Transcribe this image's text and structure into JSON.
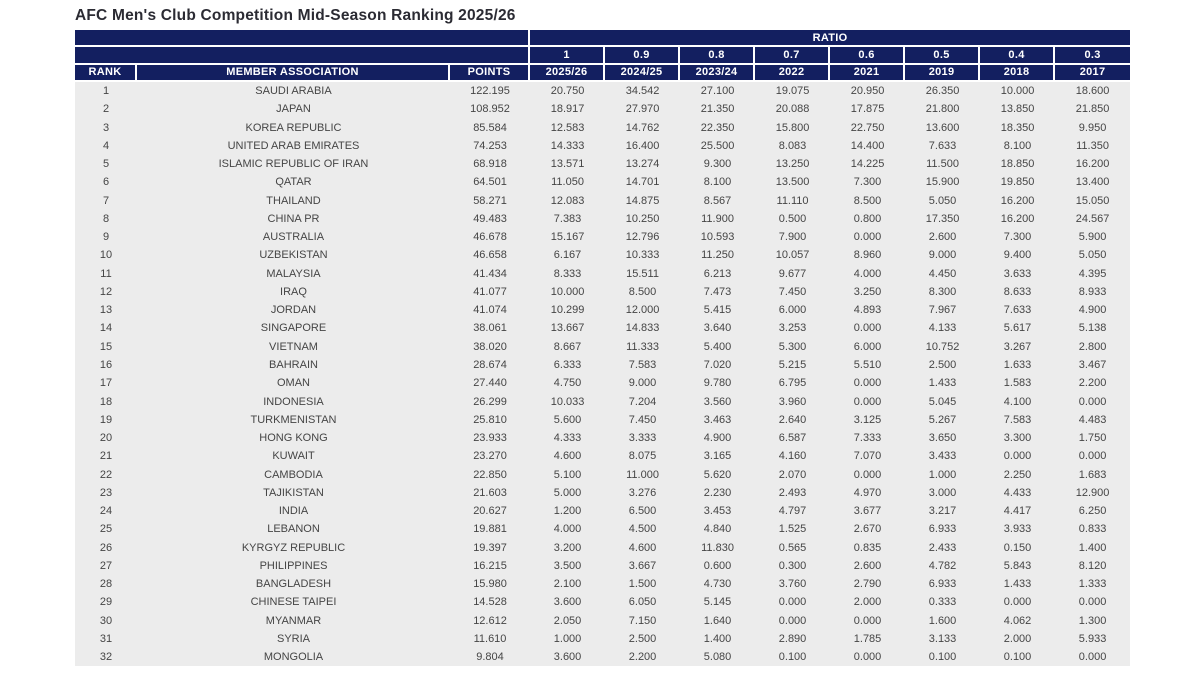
{
  "page": {
    "title": "AFC Men's Club Competition Mid-Season Ranking 2025/26"
  },
  "colors": {
    "header_navy": "#131f60",
    "row_background": "#ececec",
    "body_text": "#454545",
    "header_text": "#ffffff"
  },
  "table": {
    "ratio_label": "RATIO",
    "ratios": [
      "1",
      "0.9",
      "0.8",
      "0.7",
      "0.6",
      "0.5",
      "0.4",
      "0.3"
    ],
    "columns": [
      "RANK",
      "MEMBER ASSOCIATION",
      "POINTS"
    ],
    "years": [
      "2025/26",
      "2024/25",
      "2023/24",
      "2022",
      "2021",
      "2019",
      "2018",
      "2017"
    ],
    "rows": [
      {
        "rank": "1",
        "association": "SAUDI ARABIA",
        "points": "122.195",
        "values": [
          "20.750",
          "34.542",
          "27.100",
          "19.075",
          "20.950",
          "26.350",
          "10.000",
          "18.600"
        ]
      },
      {
        "rank": "2",
        "association": "JAPAN",
        "points": "108.952",
        "values": [
          "18.917",
          "27.970",
          "21.350",
          "20.088",
          "17.875",
          "21.800",
          "13.850",
          "21.850"
        ]
      },
      {
        "rank": "3",
        "association": "KOREA REPUBLIC",
        "points": "85.584",
        "values": [
          "12.583",
          "14.762",
          "22.350",
          "15.800",
          "22.750",
          "13.600",
          "18.350",
          "9.950"
        ]
      },
      {
        "rank": "4",
        "association": "UNITED ARAB EMIRATES",
        "points": "74.253",
        "values": [
          "14.333",
          "16.400",
          "25.500",
          "8.083",
          "14.400",
          "7.633",
          "8.100",
          "11.350"
        ]
      },
      {
        "rank": "5",
        "association": "ISLAMIC REPUBLIC OF IRAN",
        "points": "68.918",
        "values": [
          "13.571",
          "13.274",
          "9.300",
          "13.250",
          "14.225",
          "11.500",
          "18.850",
          "16.200"
        ]
      },
      {
        "rank": "6",
        "association": "QATAR",
        "points": "64.501",
        "values": [
          "11.050",
          "14.701",
          "8.100",
          "13.500",
          "7.300",
          "15.900",
          "19.850",
          "13.400"
        ]
      },
      {
        "rank": "7",
        "association": "THAILAND",
        "points": "58.271",
        "values": [
          "12.083",
          "14.875",
          "8.567",
          "11.110",
          "8.500",
          "5.050",
          "16.200",
          "15.050"
        ]
      },
      {
        "rank": "8",
        "association": "CHINA PR",
        "points": "49.483",
        "values": [
          "7.383",
          "10.250",
          "11.900",
          "0.500",
          "0.800",
          "17.350",
          "16.200",
          "24.567"
        ]
      },
      {
        "rank": "9",
        "association": "AUSTRALIA",
        "points": "46.678",
        "values": [
          "15.167",
          "12.796",
          "10.593",
          "7.900",
          "0.000",
          "2.600",
          "7.300",
          "5.900"
        ]
      },
      {
        "rank": "10",
        "association": "UZBEKISTAN",
        "points": "46.658",
        "values": [
          "6.167",
          "10.333",
          "11.250",
          "10.057",
          "8.960",
          "9.000",
          "9.400",
          "5.050"
        ]
      },
      {
        "rank": "11",
        "association": "MALAYSIA",
        "points": "41.434",
        "values": [
          "8.333",
          "15.511",
          "6.213",
          "9.677",
          "4.000",
          "4.450",
          "3.633",
          "4.395"
        ]
      },
      {
        "rank": "12",
        "association": "IRAQ",
        "points": "41.077",
        "values": [
          "10.000",
          "8.500",
          "7.473",
          "7.450",
          "3.250",
          "8.300",
          "8.633",
          "8.933"
        ]
      },
      {
        "rank": "13",
        "association": "JORDAN",
        "points": "41.074",
        "values": [
          "10.299",
          "12.000",
          "5.415",
          "6.000",
          "4.893",
          "7.967",
          "7.633",
          "4.900"
        ]
      },
      {
        "rank": "14",
        "association": "SINGAPORE",
        "points": "38.061",
        "values": [
          "13.667",
          "14.833",
          "3.640",
          "3.253",
          "0.000",
          "4.133",
          "5.617",
          "5.138"
        ]
      },
      {
        "rank": "15",
        "association": "VIETNAM",
        "points": "38.020",
        "values": [
          "8.667",
          "11.333",
          "5.400",
          "5.300",
          "6.000",
          "10.752",
          "3.267",
          "2.800"
        ]
      },
      {
        "rank": "16",
        "association": "BAHRAIN",
        "points": "28.674",
        "values": [
          "6.333",
          "7.583",
          "7.020",
          "5.215",
          "5.510",
          "2.500",
          "1.633",
          "3.467"
        ]
      },
      {
        "rank": "17",
        "association": "OMAN",
        "points": "27.440",
        "values": [
          "4.750",
          "9.000",
          "9.780",
          "6.795",
          "0.000",
          "1.433",
          "1.583",
          "2.200"
        ]
      },
      {
        "rank": "18",
        "association": "INDONESIA",
        "points": "26.299",
        "values": [
          "10.033",
          "7.204",
          "3.560",
          "3.960",
          "0.000",
          "5.045",
          "4.100",
          "0.000"
        ]
      },
      {
        "rank": "19",
        "association": "TURKMENISTAN",
        "points": "25.810",
        "values": [
          "5.600",
          "7.450",
          "3.463",
          "2.640",
          "3.125",
          "5.267",
          "7.583",
          "4.483"
        ]
      },
      {
        "rank": "20",
        "association": "HONG KONG",
        "points": "23.933",
        "values": [
          "4.333",
          "3.333",
          "4.900",
          "6.587",
          "7.333",
          "3.650",
          "3.300",
          "1.750"
        ]
      },
      {
        "rank": "21",
        "association": "KUWAIT",
        "points": "23.270",
        "values": [
          "4.600",
          "8.075",
          "3.165",
          "4.160",
          "7.070",
          "3.433",
          "0.000",
          "0.000"
        ]
      },
      {
        "rank": "22",
        "association": "CAMBODIA",
        "points": "22.850",
        "values": [
          "5.100",
          "11.000",
          "5.620",
          "2.070",
          "0.000",
          "1.000",
          "2.250",
          "1.683"
        ]
      },
      {
        "rank": "23",
        "association": "TAJIKISTAN",
        "points": "21.603",
        "values": [
          "5.000",
          "3.276",
          "2.230",
          "2.493",
          "4.970",
          "3.000",
          "4.433",
          "12.900"
        ]
      },
      {
        "rank": "24",
        "association": "INDIA",
        "points": "20.627",
        "values": [
          "1.200",
          "6.500",
          "3.453",
          "4.797",
          "3.677",
          "3.217",
          "4.417",
          "6.250"
        ]
      },
      {
        "rank": "25",
        "association": "LEBANON",
        "points": "19.881",
        "values": [
          "4.000",
          "4.500",
          "4.840",
          "1.525",
          "2.670",
          "6.933",
          "3.933",
          "0.833"
        ]
      },
      {
        "rank": "26",
        "association": "KYRGYZ REPUBLIC",
        "points": "19.397",
        "values": [
          "3.200",
          "4.600",
          "11.830",
          "0.565",
          "0.835",
          "2.433",
          "0.150",
          "1.400"
        ]
      },
      {
        "rank": "27",
        "association": "PHILIPPINES",
        "points": "16.215",
        "values": [
          "3.500",
          "3.667",
          "0.600",
          "0.300",
          "2.600",
          "4.782",
          "5.843",
          "8.120"
        ]
      },
      {
        "rank": "28",
        "association": "BANGLADESH",
        "points": "15.980",
        "values": [
          "2.100",
          "1.500",
          "4.730",
          "3.760",
          "2.790",
          "6.933",
          "1.433",
          "1.333"
        ]
      },
      {
        "rank": "29",
        "association": "CHINESE TAIPEI",
        "points": "14.528",
        "values": [
          "3.600",
          "6.050",
          "5.145",
          "0.000",
          "2.000",
          "0.333",
          "0.000",
          "0.000"
        ]
      },
      {
        "rank": "30",
        "association": "MYANMAR",
        "points": "12.612",
        "values": [
          "2.050",
          "7.150",
          "1.640",
          "0.000",
          "0.000",
          "1.600",
          "4.062",
          "1.300"
        ]
      },
      {
        "rank": "31",
        "association": "SYRIA",
        "points": "11.610",
        "values": [
          "1.000",
          "2.500",
          "1.400",
          "2.890",
          "1.785",
          "3.133",
          "2.000",
          "5.933"
        ]
      },
      {
        "rank": "32",
        "association": "MONGOLIA",
        "points": "9.804",
        "values": [
          "3.600",
          "2.200",
          "5.080",
          "0.100",
          "0.000",
          "0.100",
          "0.100",
          "0.000"
        ]
      }
    ]
  }
}
